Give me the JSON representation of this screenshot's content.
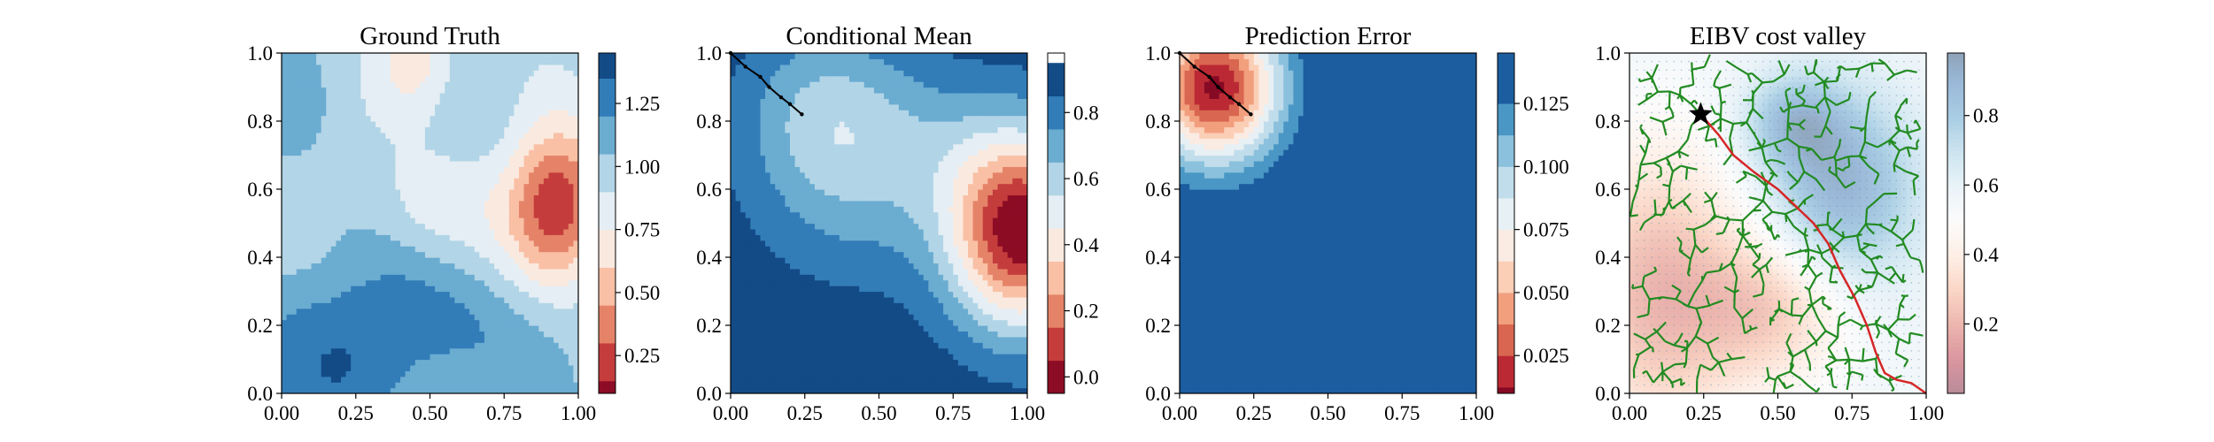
{
  "figure": {
    "panels_count": 4
  },
  "chart_data": [
    {
      "type": "heatmap",
      "title": "Ground Truth",
      "xlim": [
        0,
        1
      ],
      "ylim": [
        0,
        1
      ],
      "xticks": [
        "0.00",
        "0.25",
        "0.50",
        "0.75",
        "1.00"
      ],
      "yticks": [
        "0.0",
        "0.2",
        "0.4",
        "0.6",
        "0.8",
        "1.0"
      ],
      "colormap": "RdBu",
      "colorbar": {
        "ticks": [
          "0.25",
          "0.50",
          "0.75",
          "1.00",
          "1.25"
        ],
        "levels": [
          0.0,
          0.15,
          0.3,
          0.45,
          0.6,
          0.75,
          0.9,
          1.05,
          1.2,
          1.35,
          1.5
        ],
        "range": [
          0.1,
          1.45
        ]
      },
      "field": "ground_truth",
      "path": []
    },
    {
      "type": "heatmap",
      "title": "Conditional Mean",
      "xlim": [
        0,
        1
      ],
      "ylim": [
        0,
        1
      ],
      "xticks": [
        "0.00",
        "0.25",
        "0.50",
        "0.75",
        "1.00"
      ],
      "yticks": [
        "0.0",
        "0.2",
        "0.4",
        "0.6",
        "0.8",
        "1.0"
      ],
      "colormap": "RdBu",
      "colorbar": {
        "ticks": [
          "0.0",
          "0.2",
          "0.4",
          "0.6",
          "0.8"
        ],
        "levels": [
          -0.05,
          0.05,
          0.15,
          0.25,
          0.35,
          0.45,
          0.55,
          0.65,
          0.75,
          0.85,
          0.95
        ],
        "range": [
          -0.05,
          0.98
        ]
      },
      "field": "conditional_mean",
      "path": [
        [
          0.0,
          1.0
        ],
        [
          0.05,
          0.96
        ],
        [
          0.1,
          0.93
        ],
        [
          0.13,
          0.9
        ],
        [
          0.17,
          0.87
        ],
        [
          0.2,
          0.85
        ],
        [
          0.24,
          0.82
        ]
      ]
    },
    {
      "type": "heatmap",
      "title": "Prediction Error",
      "xlim": [
        0,
        1
      ],
      "ylim": [
        0,
        1
      ],
      "xticks": [
        "0.00",
        "0.25",
        "0.50",
        "0.75",
        "1.00"
      ],
      "yticks": [
        "0.0",
        "0.2",
        "0.4",
        "0.6",
        "0.8",
        "1.0"
      ],
      "colormap": "RdBu",
      "colorbar": {
        "ticks": [
          "0.025",
          "0.050",
          "0.075",
          "0.100",
          "0.125"
        ],
        "levels": [
          0.0,
          0.0125,
          0.025,
          0.0375,
          0.05,
          0.0625,
          0.075,
          0.0875,
          0.1,
          0.1125,
          0.125,
          0.15
        ],
        "range": [
          0.01,
          0.145
        ]
      },
      "field": "prediction_error",
      "path": [
        [
          0.0,
          1.0
        ],
        [
          0.05,
          0.96
        ],
        [
          0.1,
          0.93
        ],
        [
          0.13,
          0.9
        ],
        [
          0.17,
          0.87
        ],
        [
          0.2,
          0.85
        ],
        [
          0.24,
          0.82
        ]
      ]
    },
    {
      "type": "heatmap",
      "title": "EIBV cost valley",
      "xlim": [
        0,
        1
      ],
      "ylim": [
        0,
        1
      ],
      "xticks": [
        "0.00",
        "0.25",
        "0.50",
        "0.75",
        "1.00"
      ],
      "yticks": [
        "0.0",
        "0.2",
        "0.4",
        "0.6",
        "0.8",
        "1.0"
      ],
      "colormap": "RdBu_light",
      "colorbar": {
        "ticks": [
          "0.2",
          "0.4",
          "0.6",
          "0.8"
        ],
        "range": [
          0.0,
          0.98
        ]
      },
      "field": "cost_valley",
      "start": [
        0.24,
        0.82
      ],
      "best_path": [
        [
          0.24,
          0.82
        ],
        [
          0.3,
          0.76
        ],
        [
          0.35,
          0.7
        ],
        [
          0.42,
          0.65
        ],
        [
          0.5,
          0.6
        ],
        [
          0.56,
          0.55
        ],
        [
          0.62,
          0.5
        ],
        [
          0.67,
          0.44
        ],
        [
          0.71,
          0.36
        ],
        [
          0.76,
          0.28
        ],
        [
          0.8,
          0.2
        ],
        [
          0.83,
          0.12
        ],
        [
          0.86,
          0.06
        ],
        [
          0.9,
          0.04
        ],
        [
          0.95,
          0.03
        ],
        [
          1.0,
          0.0
        ]
      ],
      "tree_color": "#228B22",
      "path_color": "#d62728"
    }
  ]
}
